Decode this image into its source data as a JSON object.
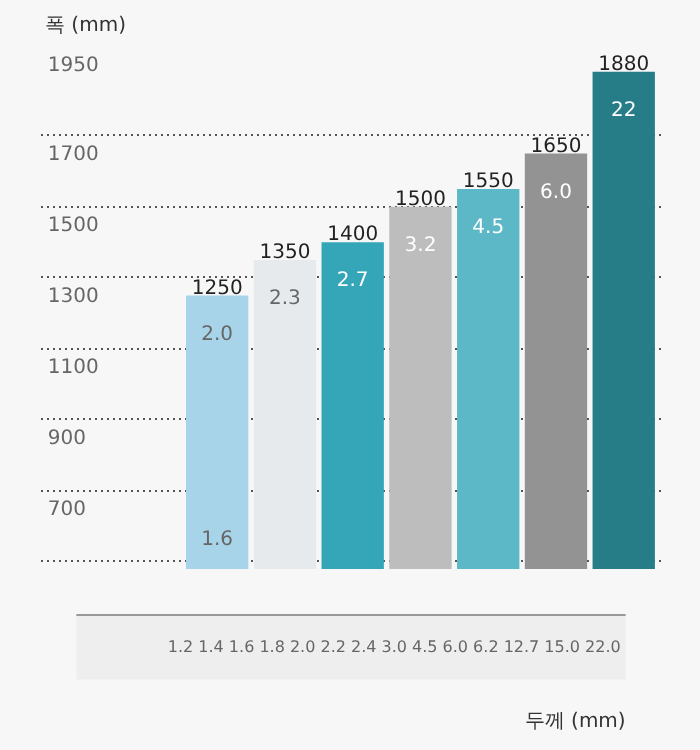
{
  "chart_data": {
    "type": "bar",
    "ylabel": "폭 (mm)",
    "categories": [
      "2.0",
      "2.3",
      "2.7",
      "3.2",
      "4.5",
      "6.0",
      "22"
    ],
    "values": [
      1250,
      1350,
      1400,
      1500,
      1550,
      1650,
      1880
    ],
    "colors": [
      "#a8d4ea",
      "#e6eaec",
      "#35a6b8",
      "#bdbdbd",
      "#5cb8c6",
      "#939393",
      "#277d87"
    ],
    "data_labels": true,
    "ylim": [
      480,
      1950
    ],
    "yticks": [
      {
        "value": 500,
        "label": null
      },
      700,
      900,
      1100,
      1300,
      1500,
      1700,
      1950
    ],
    "grid": "y",
    "annotations": [
      "1.6",
      "1.2 1.4 1.6 1.8 2.0 2.2 2.4 3.0 4.5 6.0 6.2 12.7 15.0 22.0",
      "두께 (mm)"
    ]
  }
}
